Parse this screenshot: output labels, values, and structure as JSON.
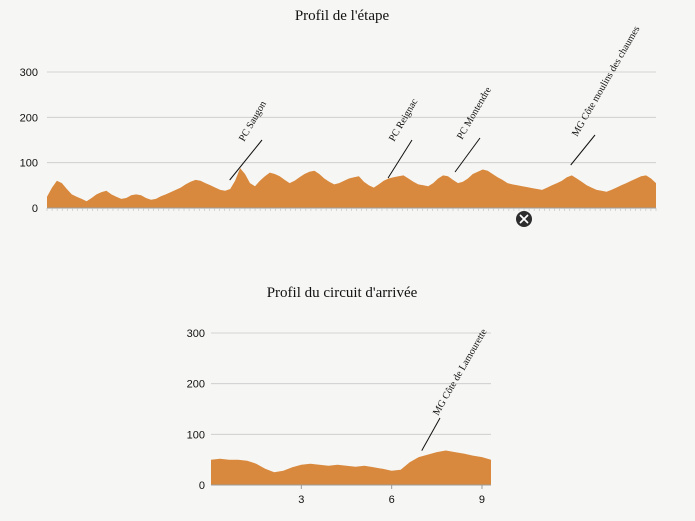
{
  "chart_data": [
    {
      "type": "area",
      "title": "Profil de l'étape",
      "xlabel": "",
      "ylabel": "",
      "ylim": [
        0,
        300
      ],
      "yticks": [
        "0",
        "100",
        "200",
        "300"
      ],
      "xticks": [],
      "grid": true,
      "color": "#d9893d",
      "series": [
        {
          "values": [
            25,
            45,
            60,
            55,
            42,
            30,
            25,
            20,
            15,
            22,
            30,
            35,
            38,
            30,
            25,
            20,
            22,
            28,
            30,
            28,
            22,
            18,
            20,
            26,
            30,
            35,
            40,
            45,
            52,
            58,
            62,
            60,
            55,
            50,
            45,
            40,
            38,
            42,
            60,
            88,
            75,
            55,
            48,
            60,
            70,
            78,
            75,
            70,
            62,
            55,
            60,
            68,
            75,
            80,
            82,
            75,
            65,
            58,
            52,
            55,
            60,
            65,
            68,
            70,
            58,
            50,
            45,
            52,
            60,
            65,
            68,
            70,
            72,
            65,
            58,
            52,
            50,
            48,
            55,
            65,
            72,
            70,
            62,
            55,
            58,
            65,
            75,
            80,
            85,
            82,
            75,
            68,
            62,
            55,
            52,
            50,
            48,
            46,
            44,
            42,
            40,
            45,
            50,
            55,
            60,
            68,
            72,
            65,
            58,
            50,
            45,
            40,
            38,
            36,
            40,
            45,
            50,
            55,
            60,
            65,
            70,
            72,
            65,
            55
          ]
        }
      ],
      "annotations": [
        "PC Saugon",
        "PC Reignac",
        "PC Montendre",
        "MG Côte moulins des chaumes"
      ]
    },
    {
      "type": "area",
      "title": "Profil du circuit d'arrivée",
      "xlabel": "",
      "ylabel": "",
      "ylim": [
        0,
        300
      ],
      "xlim": [
        0,
        9.3
      ],
      "yticks": [
        "0",
        "100",
        "200",
        "300"
      ],
      "xticks": [
        "3",
        "6",
        "9"
      ],
      "grid": true,
      "color": "#d9893d",
      "series": [
        {
          "x": [
            0,
            0.3,
            0.6,
            0.9,
            1.2,
            1.5,
            1.8,
            2.1,
            2.4,
            2.7,
            3.0,
            3.3,
            3.6,
            3.9,
            4.2,
            4.5,
            4.8,
            5.1,
            5.4,
            5.7,
            6.0,
            6.3,
            6.6,
            6.9,
            7.2,
            7.5,
            7.8,
            8.1,
            8.4,
            8.7,
            9.0,
            9.3
          ],
          "values": [
            50,
            52,
            50,
            50,
            48,
            42,
            32,
            25,
            28,
            35,
            40,
            42,
            40,
            38,
            40,
            38,
            36,
            38,
            35,
            32,
            28,
            30,
            45,
            55,
            60,
            65,
            68,
            65,
            62,
            58,
            55,
            50
          ]
        }
      ],
      "annotations": [
        "MG Côte de Lamourette"
      ]
    }
  ]
}
